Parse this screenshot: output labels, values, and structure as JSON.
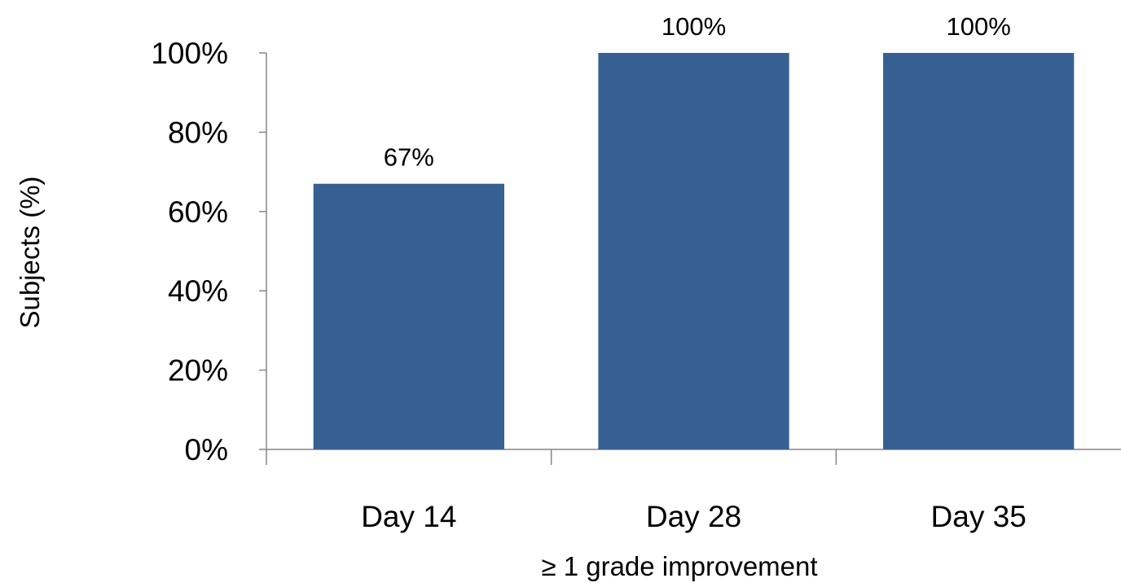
{
  "chart_data": {
    "type": "bar",
    "categories": [
      "Day 14",
      "Day 28",
      "Day 35"
    ],
    "values": [
      67,
      100,
      100
    ],
    "data_labels": [
      "67%",
      "100%",
      "100%"
    ],
    "title": "",
    "xlabel": "≥ 1 grade improvement",
    "ylabel": "Subjects (%)",
    "ylim": [
      0,
      100
    ],
    "yticks": [
      0,
      20,
      40,
      60,
      80,
      100
    ],
    "ytick_labels": [
      "0%",
      "20%",
      "40%",
      "60%",
      "80%",
      "100%"
    ],
    "grid": false,
    "legend": "none",
    "bar_color": "#376092",
    "axis_color": "#868686"
  }
}
